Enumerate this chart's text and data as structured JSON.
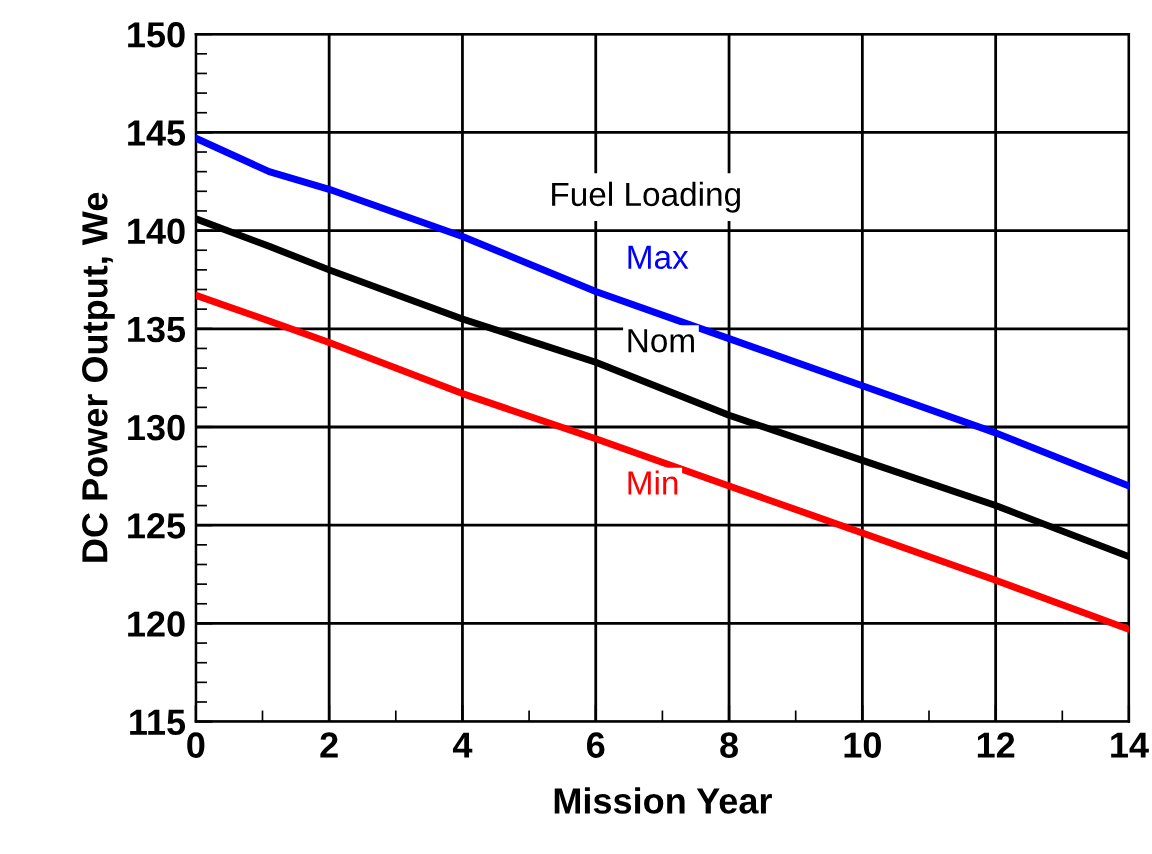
{
  "chart_data": {
    "type": "line",
    "xlabel": "Mission Year",
    "ylabel": "DC Power Output, We",
    "legend_title": "Fuel Loading",
    "legend": false,
    "grid": true,
    "x": [
      0,
      1.1,
      2,
      4,
      6,
      8,
      10,
      12,
      14
    ],
    "series": [
      {
        "name": "Max",
        "color": "#0000ff",
        "values": [
          144.7,
          143.0,
          142.1,
          139.7,
          136.9,
          134.5,
          132.1,
          129.7,
          127.0
        ]
      },
      {
        "name": "Nom",
        "color": "#000000",
        "values": [
          140.6,
          139.2,
          138.0,
          135.5,
          133.3,
          130.6,
          128.3,
          126.0,
          123.4
        ]
      },
      {
        "name": "Min",
        "color": "#ff0000",
        "values": [
          136.7,
          135.4,
          134.3,
          131.7,
          129.4,
          127.0,
          124.6,
          122.2,
          119.7
        ]
      }
    ],
    "xlim": [
      0,
      14
    ],
    "ylim": [
      115,
      150
    ],
    "xticks": [
      0,
      2,
      4,
      6,
      8,
      10,
      12,
      14
    ],
    "yticks": [
      115,
      120,
      125,
      130,
      135,
      140,
      145,
      150
    ]
  }
}
